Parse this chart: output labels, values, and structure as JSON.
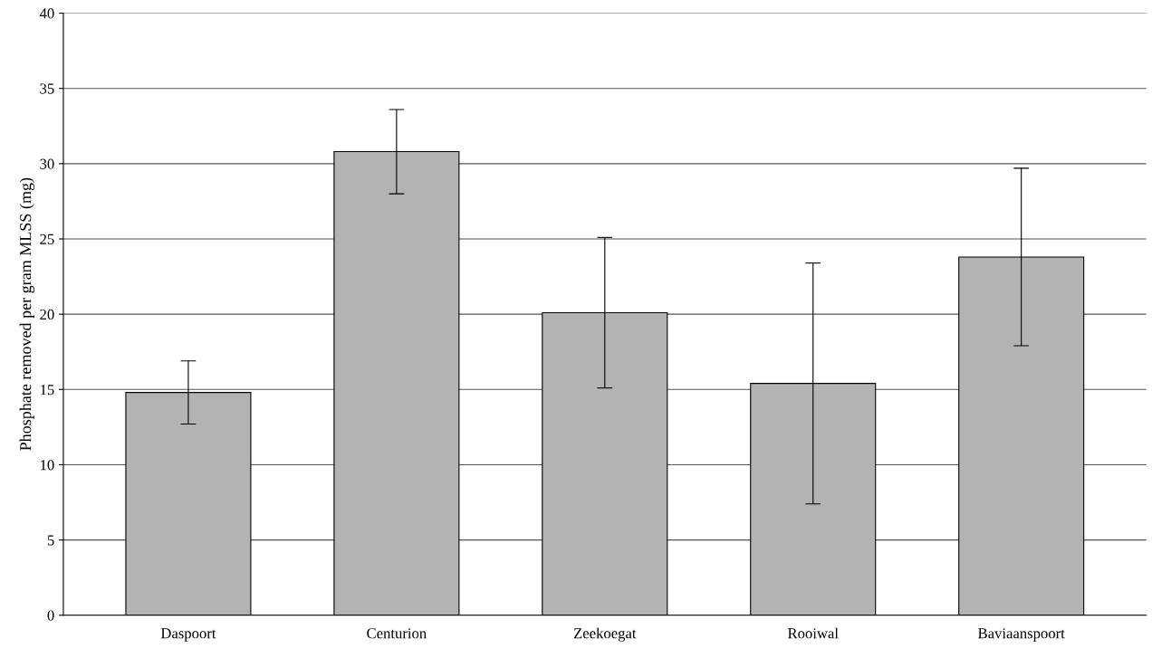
{
  "chart_data": {
    "type": "bar",
    "ylabel": "Phosphate removed per gram MLSS (mg)",
    "categories": [
      "Daspoort",
      "Centurion",
      "Zeekoegat",
      "Rooiwal",
      "Baviaanspoort"
    ],
    "series": [
      {
        "color": "#b3b3b3",
        "values": [
          14.8,
          30.8,
          20.1,
          15.4,
          23.8
        ],
        "errors": [
          2.1,
          2.8,
          5.0,
          8.0,
          5.9
        ]
      }
    ],
    "ylim": [
      0,
      40
    ],
    "yticks": [
      0,
      5,
      10,
      15,
      20,
      25,
      30,
      35,
      40
    ],
    "grid": "y"
  }
}
